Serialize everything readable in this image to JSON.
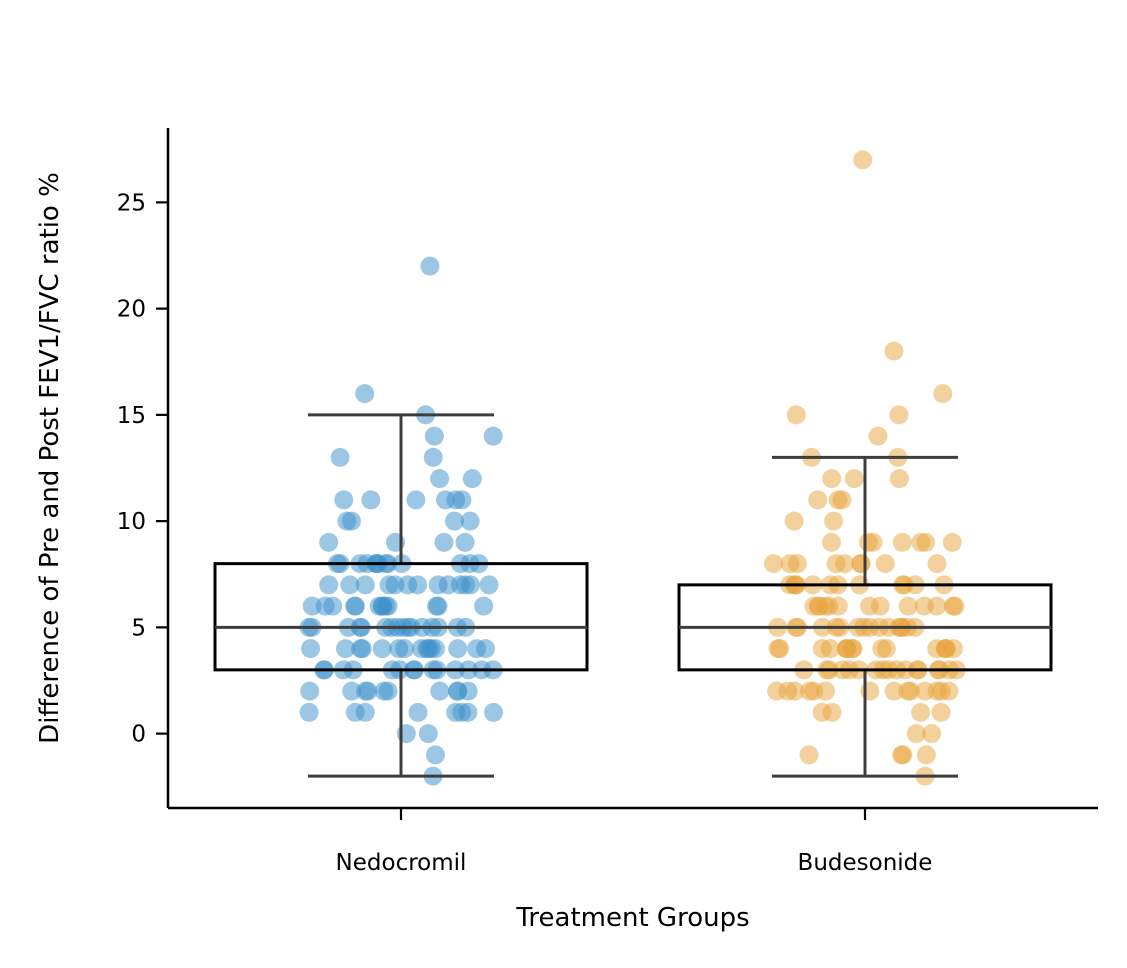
{
  "chart_data": {
    "type": "box",
    "xlabel": "Treatment Groups",
    "ylabel": "Difference of Pre and Post FEV1/FVC ratio %",
    "ylim": [
      -3.5,
      28.5
    ],
    "yticks": [
      0,
      5,
      10,
      15,
      20,
      25
    ],
    "categories": [
      "Nedocromil",
      "Budesonide"
    ],
    "boxes": [
      {
        "name": "Nedocromil",
        "whisker_low": -2,
        "q1": 3,
        "median": 5,
        "q3": 8,
        "whisker_high": 15
      },
      {
        "name": "Budesonide",
        "whisker_low": -2,
        "q1": 3,
        "median": 5,
        "q3": 7,
        "whisker_high": 13
      }
    ],
    "series": [
      {
        "name": "Nedocromil",
        "color": "#3a8fc9",
        "values": [
          22,
          16,
          15,
          14,
          14,
          13,
          13,
          12,
          12,
          11,
          11,
          11,
          11,
          11,
          11,
          10,
          10,
          10,
          10,
          9,
          9,
          9,
          9,
          8,
          8,
          8,
          8,
          8,
          8,
          8,
          8,
          8,
          8,
          8,
          8,
          8,
          7,
          7,
          7,
          7,
          7,
          7,
          7,
          7,
          7,
          7,
          7,
          7,
          7,
          6,
          6,
          6,
          6,
          6,
          6,
          6,
          6,
          6,
          6,
          6,
          6,
          6,
          5,
          5,
          5,
          5,
          5,
          5,
          5,
          5,
          5,
          5,
          5,
          5,
          5,
          5,
          5,
          5,
          4,
          4,
          4,
          4,
          4,
          4,
          4,
          4,
          4,
          4,
          4,
          4,
          4,
          4,
          4,
          3,
          3,
          3,
          3,
          3,
          3,
          3,
          3,
          3,
          3,
          3,
          3,
          3,
          3,
          2,
          2,
          2,
          2,
          2,
          2,
          2,
          2,
          2,
          2,
          1,
          1,
          1,
          1,
          1,
          1,
          1,
          1,
          0,
          0,
          -1,
          -2
        ]
      },
      {
        "name": "Budesonide",
        "color": "#e8a33b",
        "values": [
          27,
          18,
          16,
          15,
          15,
          14,
          13,
          13,
          12,
          12,
          12,
          11,
          11,
          11,
          10,
          10,
          9,
          9,
          9,
          9,
          9,
          9,
          9,
          8,
          8,
          8,
          8,
          8,
          8,
          8,
          8,
          8,
          7,
          7,
          7,
          7,
          7,
          7,
          7,
          7,
          7,
          7,
          7,
          7,
          6,
          6,
          6,
          6,
          6,
          6,
          6,
          6,
          6,
          6,
          6,
          6,
          6,
          5,
          5,
          5,
          5,
          5,
          5,
          5,
          5,
          5,
          5,
          5,
          5,
          5,
          5,
          5,
          5,
          4,
          4,
          4,
          4,
          4,
          4,
          4,
          4,
          4,
          4,
          4,
          4,
          4,
          4,
          4,
          4,
          3,
          3,
          3,
          3,
          3,
          3,
          3,
          3,
          3,
          3,
          3,
          3,
          3,
          3,
          3,
          3,
          3,
          2,
          2,
          2,
          2,
          2,
          2,
          2,
          2,
          2,
          2,
          2,
          2,
          2,
          2,
          1,
          1,
          1,
          1,
          0,
          0,
          -1,
          -1,
          -1,
          -1,
          -2
        ]
      }
    ]
  }
}
